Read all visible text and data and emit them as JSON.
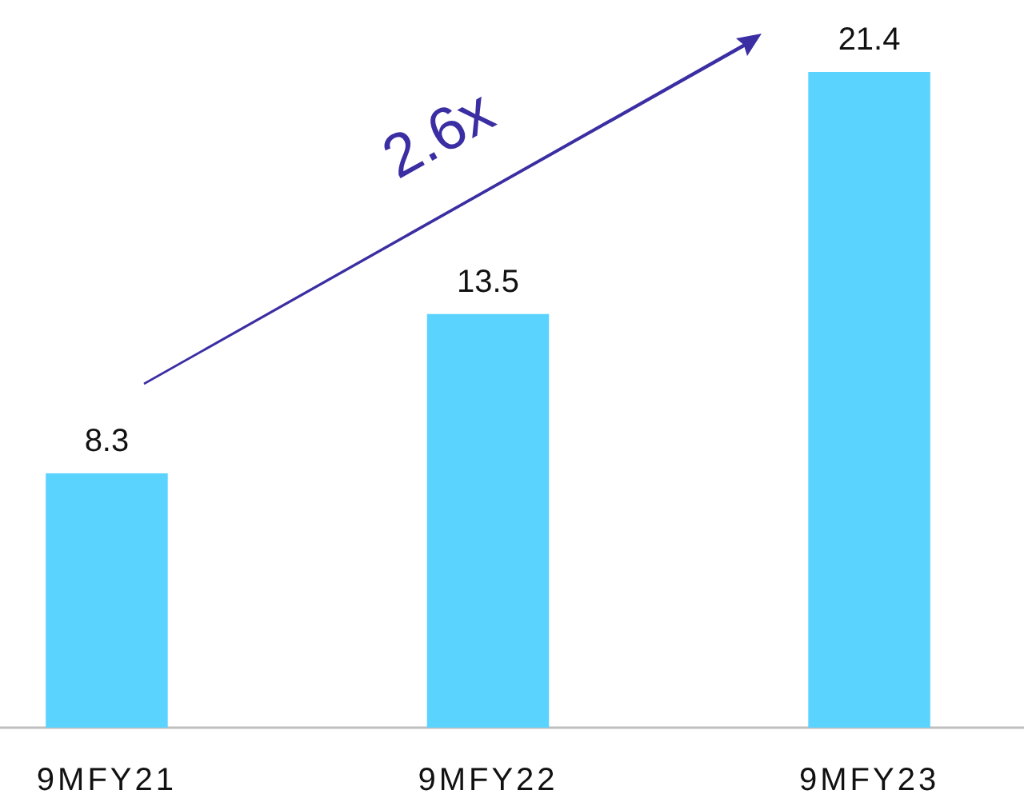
{
  "chart_data": {
    "type": "bar",
    "categories": [
      "9MFY21",
      "9MFY22",
      "9MFY23"
    ],
    "values": [
      8.3,
      13.5,
      21.4
    ],
    "color": "#5bd3ff",
    "data_labels": true,
    "annotations": [
      "2.6x"
    ]
  }
}
